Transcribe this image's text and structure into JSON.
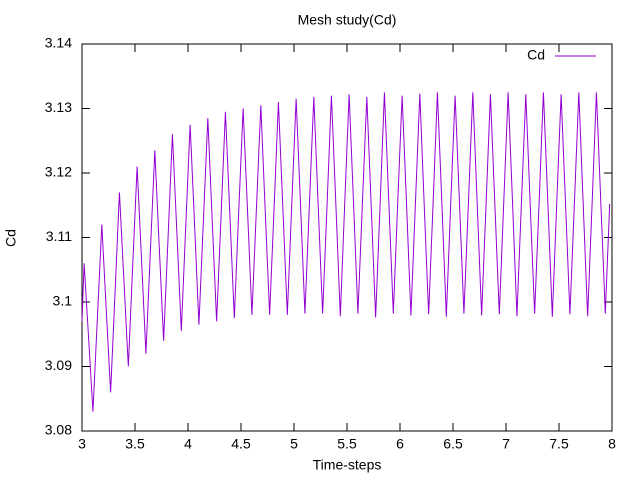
{
  "chart_data": {
    "type": "line",
    "title": "Mesh study(Cd)",
    "x_label": "Time-steps",
    "y_label": "Cd",
    "xlim": [
      3,
      8
    ],
    "xticks": [
      3,
      3.5,
      4,
      4.5,
      5,
      5.5,
      6,
      6.5,
      7,
      7.5,
      8
    ],
    "ylim": [
      3.08,
      3.14
    ],
    "yticks": [
      3.08,
      3.09,
      3.1,
      3.11,
      3.12,
      3.13,
      3.14
    ],
    "legend": "top-right",
    "x": [
      3,
      3.02,
      3.062,
      3.103,
      3.145,
      3.187,
      3.228,
      3.27,
      3.312,
      3.353,
      3.395,
      3.437,
      3.478,
      3.52,
      3.562,
      3.603,
      3.645,
      3.687,
      3.728,
      3.77,
      3.812,
      3.853,
      3.895,
      3.937,
      3.978,
      4.02,
      4.062,
      4.103,
      4.145,
      4.187,
      4.228,
      4.27,
      4.312,
      4.353,
      4.395,
      4.437,
      4.478,
      4.52,
      4.562,
      4.603,
      4.645,
      4.687,
      4.728,
      4.77,
      4.812,
      4.853,
      4.895,
      4.937,
      4.978,
      5.02,
      5.062,
      5.103,
      5.145,
      5.187,
      5.228,
      5.27,
      5.312,
      5.353,
      5.395,
      5.437,
      5.478,
      5.52,
      5.562,
      5.603,
      5.645,
      5.687,
      5.728,
      5.77,
      5.812,
      5.853,
      5.895,
      5.937,
      5.978,
      6.02,
      6.062,
      6.103,
      6.145,
      6.187,
      6.228,
      6.27,
      6.312,
      6.353,
      6.395,
      6.437,
      6.478,
      6.52,
      6.562,
      6.603,
      6.645,
      6.687,
      6.728,
      6.77,
      6.812,
      6.853,
      6.895,
      6.937,
      6.978,
      7.02,
      7.062,
      7.103,
      7.145,
      7.187,
      7.228,
      7.27,
      7.312,
      7.353,
      7.395,
      7.437,
      7.478,
      7.52,
      7.562,
      7.603,
      7.645,
      7.687,
      7.728,
      7.77,
      7.812,
      7.853,
      7.895,
      7.937,
      7.978
    ],
    "series": [
      {
        "name": "Cd",
        "color": "#9400d3",
        "values": [
          3.097,
          3.106,
          3.0945,
          3.083,
          3.0975,
          3.112,
          3.099,
          3.086,
          3.1015,
          3.117,
          3.1035,
          3.09,
          3.1055,
          3.121,
          3.1065,
          3.092,
          3.1078,
          3.1235,
          3.1088,
          3.094,
          3.11,
          3.126,
          3.1108,
          3.0955,
          3.1115,
          3.1275,
          3.112,
          3.0965,
          3.1125,
          3.1285,
          3.1128,
          3.097,
          3.1133,
          3.1295,
          3.1135,
          3.0975,
          3.1138,
          3.13,
          3.114,
          3.098,
          3.1143,
          3.1305,
          3.1143,
          3.098,
          3.1145,
          3.131,
          3.1145,
          3.098,
          3.1148,
          3.1315,
          3.1149,
          3.0982,
          3.115,
          3.1318,
          3.115,
          3.0982,
          3.1151,
          3.132,
          3.1151,
          3.0978,
          3.1151,
          3.1322,
          3.1152,
          3.0982,
          3.1152,
          3.1318,
          3.115,
          3.0976,
          3.115,
          3.1325,
          3.1153,
          3.0982,
          3.1152,
          3.132,
          3.1151,
          3.0979,
          3.1151,
          3.1323,
          3.1152,
          3.0981,
          3.1152,
          3.1325,
          3.1153,
          3.0977,
          3.1151,
          3.132,
          3.115,
          3.0982,
          3.1152,
          3.1325,
          3.1153,
          3.0979,
          3.1152,
          3.1322,
          3.1151,
          3.0981,
          3.1151,
          3.1325,
          3.1153,
          3.0978,
          3.1152,
          3.1322,
          3.1152,
          3.0982,
          3.1153,
          3.1325,
          3.1153,
          3.0977,
          3.1151,
          3.1322,
          3.1151,
          3.0981,
          3.1152,
          3.1325,
          3.1153,
          3.0978,
          3.1151,
          3.1325,
          3.1152,
          3.0982,
          3.1152
        ]
      }
    ]
  }
}
